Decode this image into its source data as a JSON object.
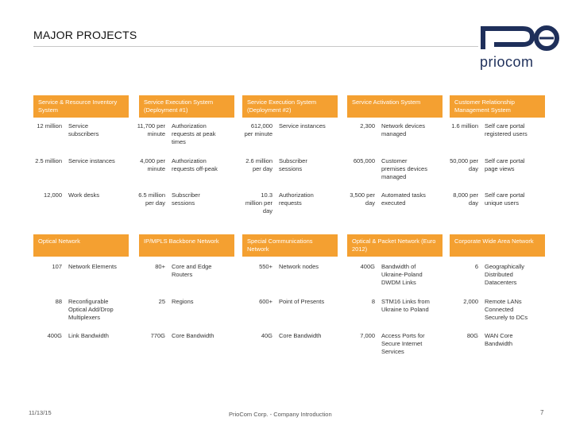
{
  "title": "MAJOR PROJECTS",
  "logo_text": "priocom",
  "top_sections": [
    {
      "header": "Service & Resource Inventory System",
      "rows": [
        {
          "num": "12 million",
          "desc": "Service subscribers"
        },
        {
          "num": "2.5 million",
          "desc": "Service instances"
        },
        {
          "num": "12,000",
          "desc": "Work desks"
        }
      ]
    },
    {
      "header": "Service Execution System (Deployment #1)",
      "rows": [
        {
          "num": "11,700 per minute",
          "desc": "Authorization requests at peak times"
        },
        {
          "num": "4,000 per minute",
          "desc": "Authorization requests off-peak"
        },
        {
          "num": "6.5 million per day",
          "desc": "Subscriber sessions"
        }
      ]
    },
    {
      "header": "Service Execution System (Deployment #2)",
      "rows": [
        {
          "num": "612,000 per minute",
          "desc": "Service instances"
        },
        {
          "num": "2.6 million per day",
          "desc": "Subscriber sessions"
        },
        {
          "num": "10.3 million per day",
          "desc": "Authorization requests"
        }
      ]
    },
    {
      "header": "Service Activation System",
      "rows": [
        {
          "num": "2,300",
          "desc": "Network devices managed"
        },
        {
          "num": "605,000",
          "desc": "Customer premises devices managed"
        },
        {
          "num": "3,500 per day",
          "desc": "Automated tasks executed"
        }
      ]
    },
    {
      "header": "Customer Relationship Management System",
      "rows": [
        {
          "num": "1.6 million",
          "desc": "Self care portal registered users"
        },
        {
          "num": "50,000 per day",
          "desc": "Self care portal page views"
        },
        {
          "num": "8,000 per day",
          "desc": "Self care portal unique users"
        }
      ]
    }
  ],
  "bottom_sections": [
    {
      "header": "Optical Network",
      "rows": [
        {
          "num": "107",
          "desc": "Network Elements"
        },
        {
          "num": "88",
          "desc": "Reconfigurable Optical Add/Drop Multiplexers"
        },
        {
          "num": "400G",
          "desc": "Link Bandwidth"
        }
      ]
    },
    {
      "header": "IP/MPLS Backbone Network",
      "rows": [
        {
          "num": "80+",
          "desc": "Core and Edge Routers"
        },
        {
          "num": "25",
          "desc": "Regions"
        },
        {
          "num": "770G",
          "desc": "Core Bandwidth"
        }
      ]
    },
    {
      "header": "Special Communications Network",
      "rows": [
        {
          "num": "550+",
          "desc": "Network nodes"
        },
        {
          "num": "600+",
          "desc": "Point of Presents"
        },
        {
          "num": "40G",
          "desc": "Core Bandwidth"
        }
      ]
    },
    {
      "header": "Optical & Packet Network (Euro 2012)",
      "rows": [
        {
          "num": "400G",
          "desc": "Bandwidth of Ukraine-Poland DWDM Links"
        },
        {
          "num": "8",
          "desc": "STM16 Links from Ukraine to Poland"
        },
        {
          "num": "7,000",
          "desc": "Access Ports for Secure Internet Services"
        }
      ]
    },
    {
      "header": "Corporate Wide Area Network",
      "rows": [
        {
          "num": "6",
          "desc": "Geographically Distributed Datacenters"
        },
        {
          "num": "2,000",
          "desc": "Remote LANs Connected Securely to DCs"
        },
        {
          "num": "80G",
          "desc": "WAN Core Bandwidth"
        }
      ]
    }
  ],
  "footer": {
    "date": "11/13/15",
    "company": "PrioCom Corp. - Company Introduction",
    "page": "7"
  },
  "colors": {
    "accent": "#f4a031",
    "logo": "#1e2f5a"
  }
}
